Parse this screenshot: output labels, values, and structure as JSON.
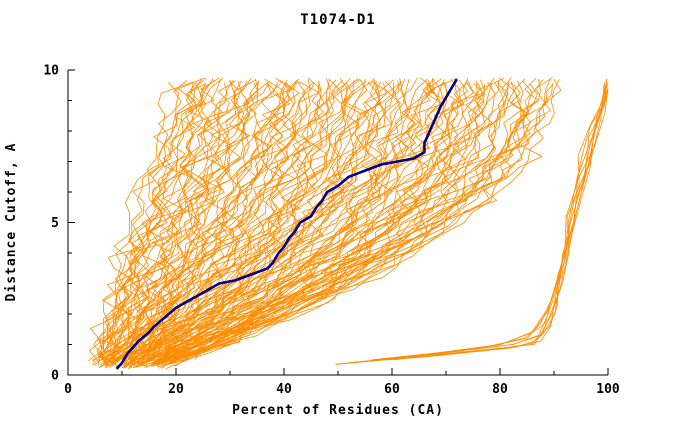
{
  "chart_data": {
    "type": "line",
    "title": "T1074-D1",
    "xlabel": "Percent of Residues (CA)",
    "ylabel": "Distance Cutoff, A",
    "xlim": [
      0,
      100
    ],
    "ylim": [
      0,
      10
    ],
    "x_major_ticks": [
      0,
      20,
      40,
      60,
      80,
      100
    ],
    "x_minor_step": 10,
    "y_major_ticks": [
      0,
      5,
      10
    ],
    "y_minor_step": 1,
    "grid": false,
    "legend": "none",
    "colors": {
      "ensemble": "#ff8c00",
      "highlight": "#00008b",
      "axis": "#000000",
      "background": "#ffffff"
    },
    "highlight_series": {
      "name": "selected-model-curve",
      "points": [
        [
          9,
          0.2
        ],
        [
          10,
          0.4
        ],
        [
          11,
          0.7
        ],
        [
          12,
          0.9
        ],
        [
          13,
          1.1
        ],
        [
          15,
          1.4
        ],
        [
          16,
          1.6
        ],
        [
          18,
          1.9
        ],
        [
          20,
          2.2
        ],
        [
          22,
          2.4
        ],
        [
          24,
          2.6
        ],
        [
          26,
          2.8
        ],
        [
          28,
          3.0
        ],
        [
          31,
          3.1
        ],
        [
          34,
          3.3
        ],
        [
          37,
          3.5
        ],
        [
          38,
          3.7
        ],
        [
          39,
          4.0
        ],
        [
          40,
          4.2
        ],
        [
          41,
          4.5
        ],
        [
          42,
          4.7
        ],
        [
          43,
          5.0
        ],
        [
          45,
          5.2
        ],
        [
          46,
          5.5
        ],
        [
          47,
          5.7
        ],
        [
          48,
          6.0
        ],
        [
          50,
          6.2
        ],
        [
          52,
          6.5
        ],
        [
          55,
          6.7
        ],
        [
          58,
          6.9
        ],
        [
          61,
          7.0
        ],
        [
          64,
          7.1
        ],
        [
          66,
          7.3
        ],
        [
          66,
          7.6
        ],
        [
          67,
          8.0
        ],
        [
          68,
          8.4
        ],
        [
          69,
          8.8
        ],
        [
          70,
          9.1
        ],
        [
          71,
          9.4
        ],
        [
          72,
          9.7
        ]
      ]
    },
    "ensemble": {
      "estimated_curve_count": 120,
      "y_span": [
        0.2,
        9.7
      ],
      "fan_curves_x_at_y0_y5_y10": [
        [
          5,
          12,
          22
        ],
        [
          5,
          14,
          24
        ],
        [
          6,
          15,
          25
        ],
        [
          5,
          16,
          27
        ],
        [
          6,
          17,
          28
        ],
        [
          7,
          19,
          30
        ],
        [
          5,
          20,
          31
        ],
        [
          6,
          22,
          33
        ],
        [
          7,
          23,
          34
        ],
        [
          8,
          24,
          36
        ],
        [
          6,
          25,
          37
        ],
        [
          7,
          27,
          39
        ],
        [
          8,
          28,
          40
        ],
        [
          9,
          30,
          42
        ],
        [
          6,
          30,
          43
        ],
        [
          7,
          32,
          45
        ],
        [
          8,
          33,
          46
        ],
        [
          9,
          35,
          48
        ],
        [
          10,
          36,
          49
        ],
        [
          7,
          38,
          51
        ],
        [
          8,
          38,
          52
        ],
        [
          9,
          40,
          54
        ],
        [
          10,
          41,
          55
        ],
        [
          8,
          43,
          57
        ],
        [
          9,
          44,
          58
        ],
        [
          10,
          45,
          60
        ],
        [
          11,
          46,
          61
        ],
        [
          9,
          48,
          63
        ],
        [
          10,
          49,
          64
        ],
        [
          11,
          51,
          66
        ],
        [
          12,
          52,
          67
        ],
        [
          10,
          53,
          69
        ],
        [
          11,
          54,
          70
        ],
        [
          12,
          56,
          72
        ],
        [
          10,
          57,
          73
        ],
        [
          11,
          59,
          75
        ],
        [
          12,
          60,
          76
        ],
        [
          13,
          61,
          78
        ],
        [
          11,
          62,
          79
        ],
        [
          12,
          64,
          81
        ],
        [
          13,
          65,
          82
        ],
        [
          12,
          67,
          84
        ],
        [
          13,
          67,
          85
        ],
        [
          14,
          69,
          87
        ],
        [
          13,
          70,
          88
        ],
        [
          14,
          72,
          90
        ]
      ],
      "outlier_curves_points": [
        [
          [
            50,
            0.35
          ],
          [
            58,
            0.5
          ],
          [
            66,
            0.6
          ],
          [
            74,
            0.75
          ],
          [
            82,
            0.9
          ],
          [
            87,
            1.1
          ],
          [
            89,
            1.6
          ],
          [
            90,
            2.3
          ],
          [
            91,
            3.2
          ],
          [
            92,
            4.2
          ],
          [
            93,
            5.2
          ],
          [
            94,
            6.2
          ],
          [
            95,
            7.2
          ],
          [
            97,
            8.2
          ],
          [
            99,
            9.0
          ],
          [
            100,
            9.7
          ]
        ],
        [
          [
            52,
            0.4
          ],
          [
            61,
            0.55
          ],
          [
            70,
            0.7
          ],
          [
            79,
            0.85
          ],
          [
            86,
            1.0
          ],
          [
            88,
            1.4
          ],
          [
            90,
            2.0
          ],
          [
            91,
            3.0
          ],
          [
            92,
            4.0
          ],
          [
            93,
            5.0
          ],
          [
            95,
            6.5
          ],
          [
            97,
            7.8
          ],
          [
            99,
            8.8
          ],
          [
            100,
            9.6
          ]
        ],
        [
          [
            55,
            0.45
          ],
          [
            64,
            0.6
          ],
          [
            73,
            0.8
          ],
          [
            82,
            1.0
          ],
          [
            87,
            1.3
          ],
          [
            89,
            1.9
          ],
          [
            91,
            2.8
          ],
          [
            93,
            4.5
          ],
          [
            94,
            5.8
          ],
          [
            96,
            7.0
          ],
          [
            98,
            8.4
          ],
          [
            100,
            9.5
          ]
        ],
        [
          [
            57,
            0.5
          ],
          [
            67,
            0.7
          ],
          [
            77,
            0.9
          ],
          [
            85,
            1.2
          ],
          [
            88,
            1.7
          ],
          [
            90,
            2.5
          ],
          [
            92,
            3.8
          ],
          [
            94,
            5.5
          ],
          [
            96,
            6.8
          ],
          [
            98,
            8.0
          ],
          [
            100,
            9.3
          ]
        ],
        [
          [
            60,
            0.5
          ],
          [
            70,
            0.75
          ],
          [
            80,
            1.0
          ],
          [
            86,
            1.4
          ],
          [
            89,
            2.1
          ],
          [
            91,
            3.3
          ],
          [
            93,
            5.0
          ],
          [
            95,
            6.4
          ],
          [
            97,
            7.5
          ],
          [
            99,
            8.6
          ],
          [
            100,
            9.4
          ]
        ]
      ]
    }
  }
}
